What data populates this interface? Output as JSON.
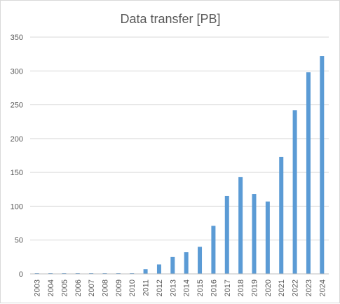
{
  "chart_data": {
    "type": "bar",
    "title": "Data transfer [PB]",
    "xlabel": "",
    "ylabel": "",
    "categories": [
      "2003",
      "2004",
      "2005",
      "2006",
      "2007",
      "2008",
      "2009",
      "2010",
      "2011",
      "2012",
      "2013",
      "2014",
      "2015",
      "2016",
      "2017",
      "2018",
      "2019",
      "2020",
      "2021",
      "2022",
      "2023",
      "2024"
    ],
    "values": [
      1,
      1,
      1,
      1,
      1,
      1,
      1,
      1,
      7,
      14,
      25,
      32,
      40,
      71,
      115,
      143,
      118,
      107,
      173,
      242,
      298,
      322
    ],
    "ylim": [
      0,
      350
    ],
    "yticks": [
      0,
      50,
      100,
      150,
      200,
      250,
      300,
      350
    ],
    "grid": true,
    "legend": "none",
    "bar_color": "#5b9bd5",
    "grid_color": "#d9d9d9",
    "axis_color": "#bfbfbf"
  }
}
